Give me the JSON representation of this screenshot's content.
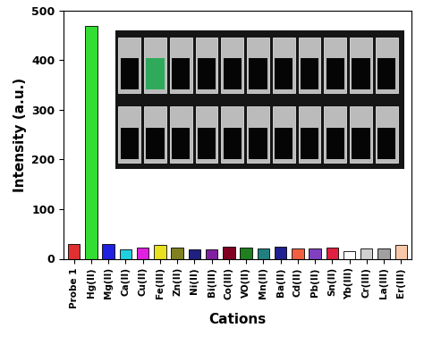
{
  "chart_data": {
    "type": "bar",
    "x_label": "Cations",
    "y_label": "Intensity (a.u.)",
    "categories": [
      "Probe 1",
      "Hg(II)",
      "Mg(II)",
      "Ca(II)",
      "Cu(II)",
      "Fe(III)",
      "Zn(II)",
      "Ni(II)",
      "Bi(III)",
      "Co(III)",
      "VO(II)",
      "Mn(II)",
      "Ba(II)",
      "Cd(II)",
      "Pb(II)",
      "Sn(II)",
      "Yb(III)",
      "Cr(III)",
      "La(III)",
      "Er(III)"
    ],
    "values": [
      30,
      468,
      30,
      18,
      23,
      27,
      22,
      18,
      18,
      24,
      22,
      20,
      24,
      20,
      20,
      22,
      16,
      20,
      20,
      27
    ],
    "colors": [
      "#e03030",
      "#33dd33",
      "#2020e0",
      "#20d0e0",
      "#e020e0",
      "#e8e020",
      "#808020",
      "#202080",
      "#8020a0",
      "#800020",
      "#208020",
      "#208080",
      "#202090",
      "#f06040",
      "#8040c0",
      "#e02040",
      "#ffffff",
      "#d0d0d0",
      "#a0a0a0",
      "#f8c8a8"
    ],
    "ylim": [
      0,
      500
    ],
    "yticks": [
      0,
      100,
      200,
      300,
      400,
      500
    ],
    "grid": false
  }
}
